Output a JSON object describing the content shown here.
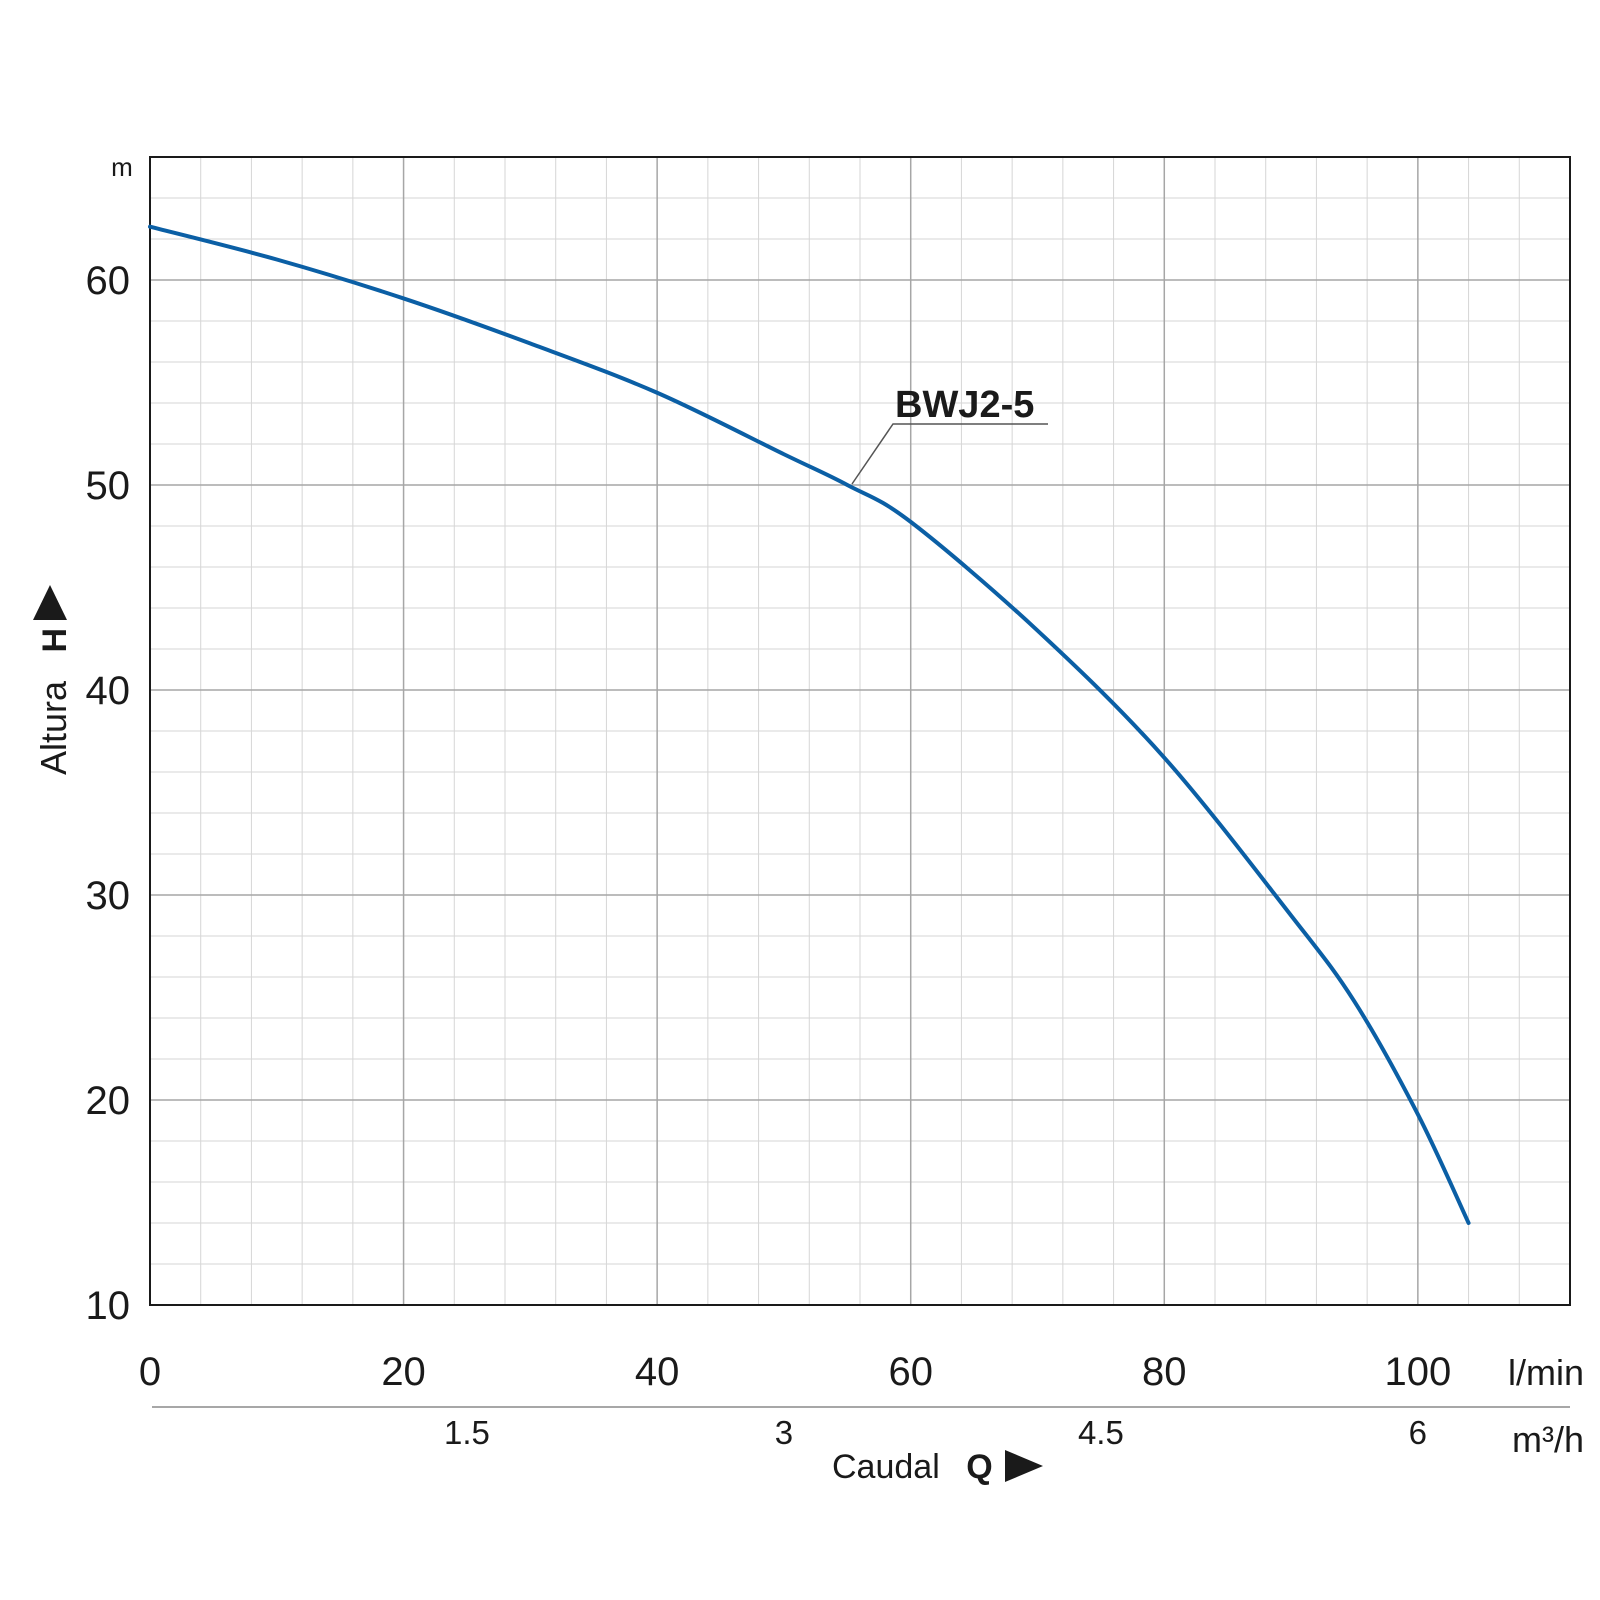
{
  "colors": {
    "curve": "#0b5fa5",
    "grid_major": "#a6a6a6",
    "grid_minor": "#d6d6d6",
    "axis": "#1a1a1a",
    "text": "#1a1a1a"
  },
  "chart_data": {
    "type": "line",
    "title": "",
    "ylabel": "Altura",
    "ylabel_symbol": "H",
    "y_unit": "m",
    "xlabel": "Caudal",
    "xlabel_symbol": "Q",
    "x_unit": "l/min",
    "x2_unit": "m³/h",
    "xlim": [
      0,
      112
    ],
    "ylim": [
      10,
      66
    ],
    "x_ticks": [
      0,
      20,
      40,
      60,
      80,
      100
    ],
    "x_tick_labels": [
      "0",
      "20",
      "40",
      "60",
      "80",
      "100"
    ],
    "x2_ticks": [
      25,
      50,
      75,
      100
    ],
    "x2_tick_labels": [
      "1.5",
      "3",
      "4.5",
      "6"
    ],
    "y_ticks": [
      10,
      20,
      30,
      40,
      50,
      60
    ],
    "y_tick_labels": [
      "10",
      "20",
      "30",
      "40",
      "50",
      "60"
    ],
    "grid": true,
    "series": [
      {
        "name": "BWJ2-5",
        "x": [
          0,
          10,
          20,
          30,
          40,
          50,
          55,
          60,
          70,
          80,
          90,
          95,
          100,
          104
        ],
        "y": [
          62.6,
          61.0,
          59.1,
          56.9,
          54.5,
          51.5,
          50.0,
          48.2,
          42.9,
          36.7,
          29.0,
          24.8,
          19.3,
          14.0
        ]
      }
    ]
  }
}
